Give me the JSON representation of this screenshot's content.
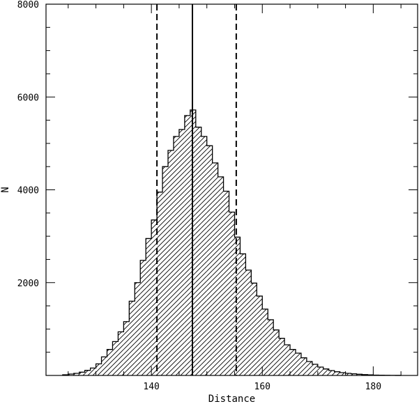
{
  "chart_data": {
    "type": "histogram",
    "title": "",
    "xlabel": "Distance",
    "ylabel": "N",
    "xlim": [
      121,
      188
    ],
    "ylim": [
      0,
      8000
    ],
    "x_ticks": [
      140,
      160,
      180
    ],
    "x_tick_labels": [
      "140",
      "160",
      "180"
    ],
    "y_ticks": [
      2000,
      4000,
      6000,
      8000
    ],
    "y_tick_labels": [
      "2000",
      "4000",
      "6000",
      "8000"
    ],
    "bin_edges": [
      124,
      125,
      126,
      127,
      128,
      129,
      130,
      131,
      132,
      133,
      134,
      135,
      136,
      137,
      138,
      139,
      140,
      141,
      142,
      143,
      144,
      145,
      146,
      147,
      148,
      149,
      150,
      151,
      152,
      153,
      154,
      155,
      156,
      157,
      158,
      159,
      160,
      161,
      162,
      163,
      164,
      165,
      166,
      167,
      168,
      169,
      170,
      171,
      172,
      173,
      174,
      175,
      176,
      177,
      178,
      179,
      180,
      181,
      182,
      183,
      184,
      185
    ],
    "counts": [
      15,
      30,
      45,
      70,
      110,
      160,
      250,
      400,
      560,
      730,
      940,
      1160,
      1600,
      2000,
      2480,
      2950,
      3350,
      3950,
      4500,
      4850,
      5150,
      5300,
      5600,
      5720,
      5350,
      5150,
      4950,
      4580,
      4280,
      3970,
      3520,
      2980,
      2620,
      2270,
      1990,
      1710,
      1430,
      1200,
      980,
      800,
      660,
      560,
      480,
      380,
      300,
      240,
      180,
      140,
      105,
      80,
      60,
      45,
      35,
      25,
      18,
      12,
      8,
      5,
      3,
      2,
      1
    ],
    "vertical_lines": [
      {
        "x": 147.4,
        "style": "solid"
      },
      {
        "x": 141.0,
        "style": "dashed"
      },
      {
        "x": 155.3,
        "style": "dashed"
      }
    ],
    "fill": "diagonal-hatch",
    "colors": {
      "line": "#000000",
      "hatch": "#000000",
      "background": "#ffffff"
    }
  }
}
